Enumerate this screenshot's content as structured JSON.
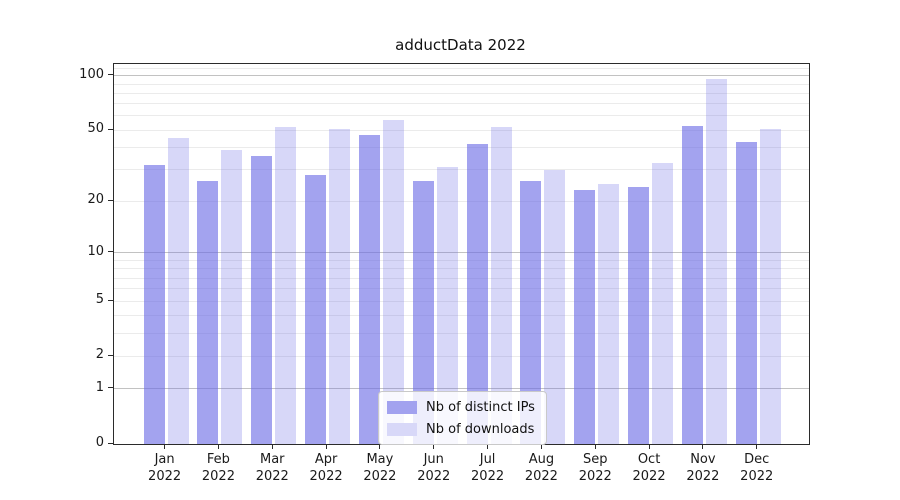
{
  "chart_data": {
    "type": "bar",
    "title": "adductData 2022",
    "categories": [
      "Jan",
      "Feb",
      "Mar",
      "Apr",
      "May",
      "Jun",
      "Jul",
      "Aug",
      "Sep",
      "Oct",
      "Nov",
      "Dec"
    ],
    "category_year": "2022",
    "series": [
      {
        "name": "Nb of distinct IPs",
        "fill": "rgba(107,107,229,0.62)",
        "swatch": "#a2a2ef",
        "values": [
          32,
          26,
          36,
          28,
          47,
          26,
          42,
          26,
          23,
          24,
          53,
          43
        ]
      },
      {
        "name": "Nb of downloads",
        "fill": "rgba(107,107,229,0.27)",
        "swatch": "#d8d8f8",
        "values": [
          45,
          39,
          52,
          51,
          57,
          31,
          52,
          30,
          25,
          33,
          96,
          51
        ]
      }
    ],
    "xlabel": "",
    "ylabel": "",
    "yscale": "symlog",
    "ylim": [
      0,
      116
    ],
    "y_tick_labels": [
      0,
      1,
      2,
      5,
      10,
      20,
      50,
      100
    ],
    "y_major_gridlines": [
      1,
      10,
      100
    ],
    "y_minor_gridlines": [
      2,
      3,
      4,
      5,
      6,
      7,
      8,
      9,
      20,
      30,
      40,
      50,
      60,
      70,
      80,
      90,
      110
    ],
    "grid": true,
    "legend_position": "lower center"
  },
  "colors": {
    "bar_base": "#6b6be5",
    "grid_major": "#c2c2c2",
    "grid_minor": "#ebebeb",
    "spine": "#2b2b2b",
    "background": "#ffffff"
  }
}
